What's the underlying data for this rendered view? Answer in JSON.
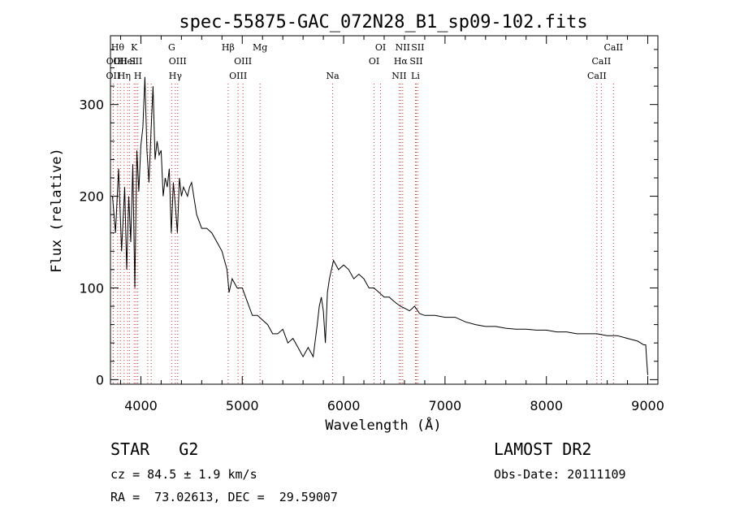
{
  "chart_data": {
    "type": "line",
    "title": "spec-55875-GAC_072N28_B1_sp09-102.fits",
    "xlabel": "Wavelength (Å)",
    "ylabel": "Flux (relative)",
    "xlim": [
      3700,
      9100
    ],
    "ylim": [
      -5,
      375
    ],
    "x_ticks": [
      4000,
      5000,
      6000,
      7000,
      8000,
      9000
    ],
    "y_ticks": [
      0,
      100,
      200,
      300
    ],
    "x_tick_labels": [
      "4000",
      "5000",
      "6000",
      "7000",
      "8000",
      "9000"
    ],
    "y_tick_labels": [
      "0",
      "100",
      "200",
      "300"
    ],
    "grid": false,
    "series": [
      {
        "x": [
          3720,
          3750,
          3780,
          3810,
          3840,
          3860,
          3880,
          3900,
          3920,
          3940,
          3960,
          3980,
          4000,
          4020,
          4040,
          4060,
          4080,
          4100,
          4120,
          4140,
          4160,
          4180,
          4200,
          4220,
          4240,
          4260,
          4280,
          4300,
          4320,
          4340,
          4360,
          4380,
          4400,
          4420,
          4440,
          4460,
          4480,
          4500,
          4550,
          4600,
          4650,
          4700,
          4750,
          4800,
          4850,
          4870,
          4900,
          4950,
          5000,
          5050,
          5100,
          5150,
          5200,
          5250,
          5300,
          5350,
          5400,
          5450,
          5500,
          5550,
          5600,
          5650,
          5700,
          5740,
          5760,
          5780,
          5800,
          5820,
          5840,
          5860,
          5880,
          5900,
          5950,
          6000,
          6050,
          6100,
          6150,
          6200,
          6250,
          6300,
          6350,
          6400,
          6450,
          6500,
          6560,
          6600,
          6650,
          6700,
          6750,
          6800,
          6900,
          7000,
          7100,
          7200,
          7300,
          7400,
          7500,
          7600,
          7700,
          7800,
          7900,
          8000,
          8100,
          8200,
          8300,
          8400,
          8500,
          8600,
          8700,
          8800,
          8900,
          8960,
          8980,
          8990,
          9000
        ],
        "y": [
          200,
          160,
          230,
          140,
          210,
          120,
          200,
          150,
          235,
          100,
          250,
          205,
          255,
          275,
          330,
          250,
          215,
          270,
          320,
          240,
          260,
          245,
          250,
          200,
          220,
          210,
          230,
          160,
          215,
          190,
          160,
          220,
          200,
          210,
          205,
          200,
          210,
          215,
          180,
          165,
          165,
          160,
          150,
          140,
          120,
          95,
          110,
          100,
          100,
          85,
          70,
          70,
          65,
          60,
          50,
          50,
          55,
          40,
          45,
          35,
          25,
          35,
          25,
          60,
          80,
          90,
          75,
          40,
          95,
          110,
          120,
          130,
          120,
          125,
          120,
          110,
          115,
          110,
          100,
          100,
          95,
          90,
          90,
          85,
          80,
          78,
          75,
          80,
          72,
          70,
          70,
          68,
          68,
          63,
          60,
          58,
          58,
          56,
          55,
          55,
          54,
          54,
          52,
          52,
          50,
          50,
          50,
          48,
          48,
          45,
          42,
          38,
          38,
          20,
          5
        ]
      }
    ],
    "spectral_lines": [
      {
        "x": 3727,
        "label": "OII",
        "row": 2
      },
      {
        "x": 3729,
        "label": "OII",
        "row": 1
      },
      {
        "x": 3771,
        "label": "Hθ",
        "row": 0
      },
      {
        "x": 3798,
        "label": "OII",
        "row": 1
      },
      {
        "x": 3835,
        "label": "Hη",
        "row": 2
      },
      {
        "x": 3869,
        "label": "HeI",
        "row": 1
      },
      {
        "x": 3889,
        "label": "",
        "row": 3
      },
      {
        "x": 3934,
        "label": "K",
        "row": 0
      },
      {
        "x": 3950,
        "label": "SII",
        "row": 1
      },
      {
        "x": 3970,
        "label": "H",
        "row": 2
      },
      {
        "x": 4068,
        "label": "",
        "row": 3
      },
      {
        "x": 4102,
        "label": "",
        "row": 3
      },
      {
        "x": 4304,
        "label": "G",
        "row": 0
      },
      {
        "x": 4340,
        "label": "Hγ",
        "row": 2
      },
      {
        "x": 4363,
        "label": "OIII",
        "row": 1
      },
      {
        "x": 4861,
        "label": "Hβ",
        "row": 0
      },
      {
        "x": 4959,
        "label": "OIII",
        "row": 2
      },
      {
        "x": 5007,
        "label": "OIII",
        "row": 1
      },
      {
        "x": 5175,
        "label": "Mg",
        "row": 0
      },
      {
        "x": 5892,
        "label": "Na",
        "row": 2
      },
      {
        "x": 6300,
        "label": "OI",
        "row": 1
      },
      {
        "x": 6364,
        "label": "OI",
        "row": 0
      },
      {
        "x": 6548,
        "label": "NII",
        "row": 2
      },
      {
        "x": 6563,
        "label": "Hα",
        "row": 1
      },
      {
        "x": 6583,
        "label": "NII",
        "row": 0
      },
      {
        "x": 6708,
        "label": "Li",
        "row": 2
      },
      {
        "x": 6716,
        "label": "SII",
        "row": 1
      },
      {
        "x": 6731,
        "label": "SII",
        "row": 0
      },
      {
        "x": 8498,
        "label": "CaII",
        "row": 2
      },
      {
        "x": 8542,
        "label": "CaII",
        "row": 1
      },
      {
        "x": 8662,
        "label": "CaII",
        "row": 0
      }
    ]
  },
  "info": {
    "class_label": "STAR",
    "subclass": "G2",
    "survey": "LAMOST DR2",
    "cz": "cz = 84.5 ± 1.9 km/s",
    "obs_date": "Obs-Date: 20111109",
    "coords": "RA =  73.02613, DEC =  29.59007"
  },
  "colors": {
    "spectrum": "#000000",
    "line_marker": "#cc3333",
    "axes": "#000000"
  }
}
